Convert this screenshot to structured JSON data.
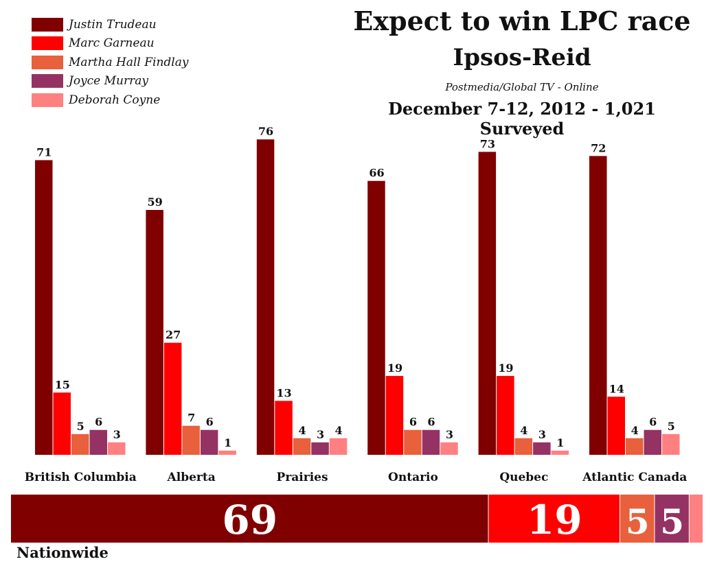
{
  "header": {
    "title": "Expect to win LPC race",
    "pollster": "Ipsos-Reid",
    "sponsor": "Postmedia/Global TV - Online",
    "dates": "December 7-12, 2012 - 1,021 Surveyed"
  },
  "colors": {
    "Justin Trudeau": "#800000",
    "Marc Garneau": "#ff0000",
    "Martha Hall Findlay": "#e8603c",
    "Joyce Murray": "#953264",
    "Deborah Coyne": "#ff8080"
  },
  "chart_data": {
    "type": "bar",
    "legend_position": "top-left",
    "grid": false,
    "ylim": [
      0,
      80
    ],
    "categories": [
      "British Columbia",
      "Alberta",
      "Prairies",
      "Ontario",
      "Quebec",
      "Atlantic Canada"
    ],
    "series": [
      {
        "name": "Justin Trudeau",
        "values": [
          71,
          59,
          76,
          66,
          73,
          72
        ]
      },
      {
        "name": "Marc Garneau",
        "values": [
          15,
          27,
          13,
          19,
          19,
          14
        ]
      },
      {
        "name": "Martha Hall Findlay",
        "values": [
          5,
          7,
          4,
          6,
          4,
          4
        ]
      },
      {
        "name": "Joyce Murray",
        "values": [
          6,
          6,
          3,
          6,
          3,
          6
        ]
      },
      {
        "name": "Deborah Coyne",
        "values": [
          3,
          1,
          4,
          3,
          1,
          5
        ]
      }
    ],
    "nationwide": {
      "label": "Nationwide",
      "values": [
        69,
        19,
        5,
        5,
        2
      ],
      "labels": [
        "69",
        "19",
        "5",
        "5",
        ""
      ]
    }
  }
}
